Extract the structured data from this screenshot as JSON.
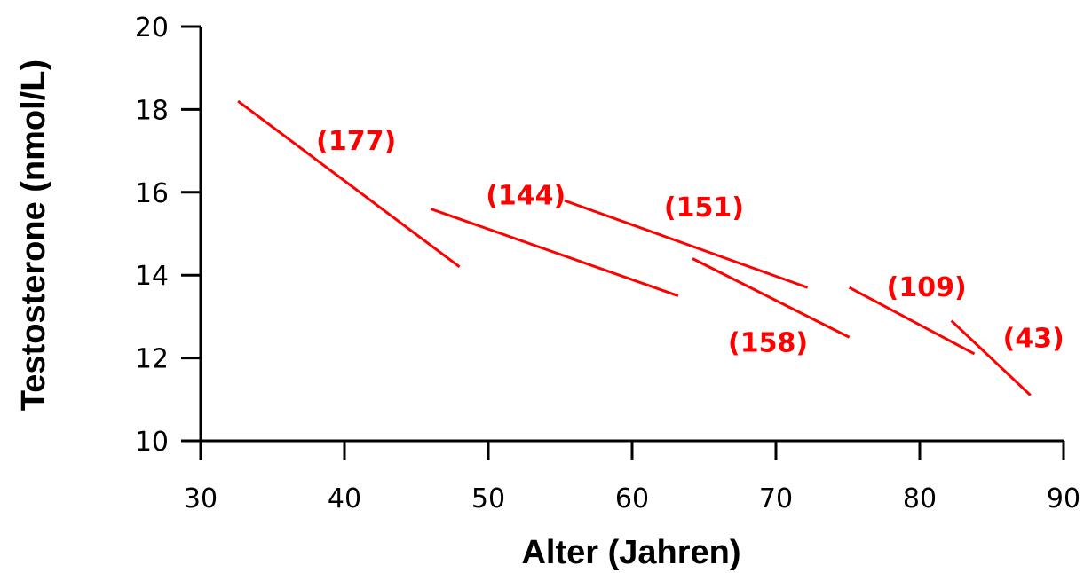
{
  "chart_data": {
    "type": "line",
    "xlabel": "Alter (Jahren)",
    "ylabel": "Testosterone (nmol/L)",
    "xlim": [
      30,
      90
    ],
    "ylim": [
      10,
      20
    ],
    "x_ticks": [
      "30",
      "40",
      "50",
      "60",
      "70",
      "80",
      "90"
    ],
    "y_ticks": [
      "10",
      "12",
      "14",
      "16",
      "18",
      "20"
    ],
    "grid": false,
    "line_color": "#ff0000",
    "axis_color": "#000000",
    "series": [
      {
        "label": "(177)",
        "x": [
          32.6,
          48.0
        ],
        "y": [
          18.2,
          14.2
        ]
      },
      {
        "label": "(144)",
        "x": [
          46.0,
          63.2
        ],
        "y": [
          15.6,
          13.5
        ]
      },
      {
        "label": "(151)",
        "x": [
          55.3,
          72.2
        ],
        "y": [
          15.8,
          13.7
        ]
      },
      {
        "label": "(158)",
        "x": [
          64.2,
          75.1
        ],
        "y": [
          14.4,
          12.5
        ]
      },
      {
        "label": "(109)",
        "x": [
          75.1,
          83.8
        ],
        "y": [
          13.7,
          12.1
        ]
      },
      {
        "label": "(43)",
        "x": [
          82.2,
          87.7
        ],
        "y": [
          12.9,
          11.1
        ]
      }
    ]
  }
}
